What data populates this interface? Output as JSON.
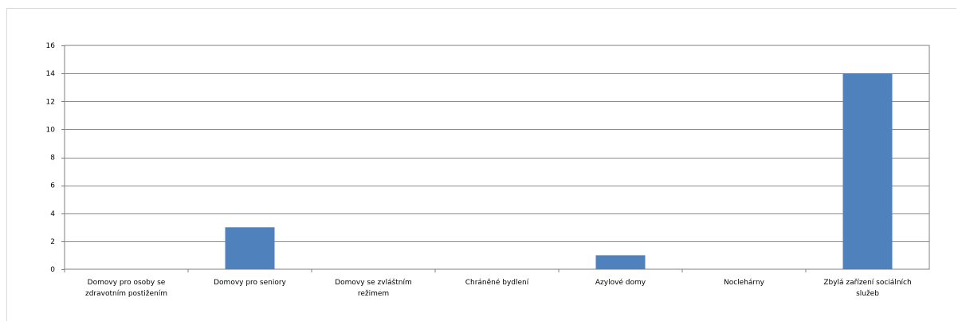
{
  "chart_data": {
    "type": "bar",
    "title": "",
    "xlabel": "",
    "ylabel": "",
    "categories": [
      [
        "Domovy pro osoby se",
        "zdravotním postižením"
      ],
      [
        "Domovy pro seniory"
      ],
      [
        "Domovy se zvláštním",
        "režimem"
      ],
      [
        "Chráněné bydlení"
      ],
      [
        "Azylové domy"
      ],
      [
        "Noclehárny"
      ],
      [
        "Zbylá zařízení sociálních",
        "služeb"
      ]
    ],
    "values": [
      0,
      3,
      0,
      0,
      1,
      0,
      14
    ],
    "ylim": [
      0,
      16
    ],
    "yticks": [
      0,
      2,
      4,
      6,
      8,
      10,
      12,
      14,
      16
    ],
    "grid": true,
    "legend": "none",
    "bar_color": "#4f81bd"
  }
}
